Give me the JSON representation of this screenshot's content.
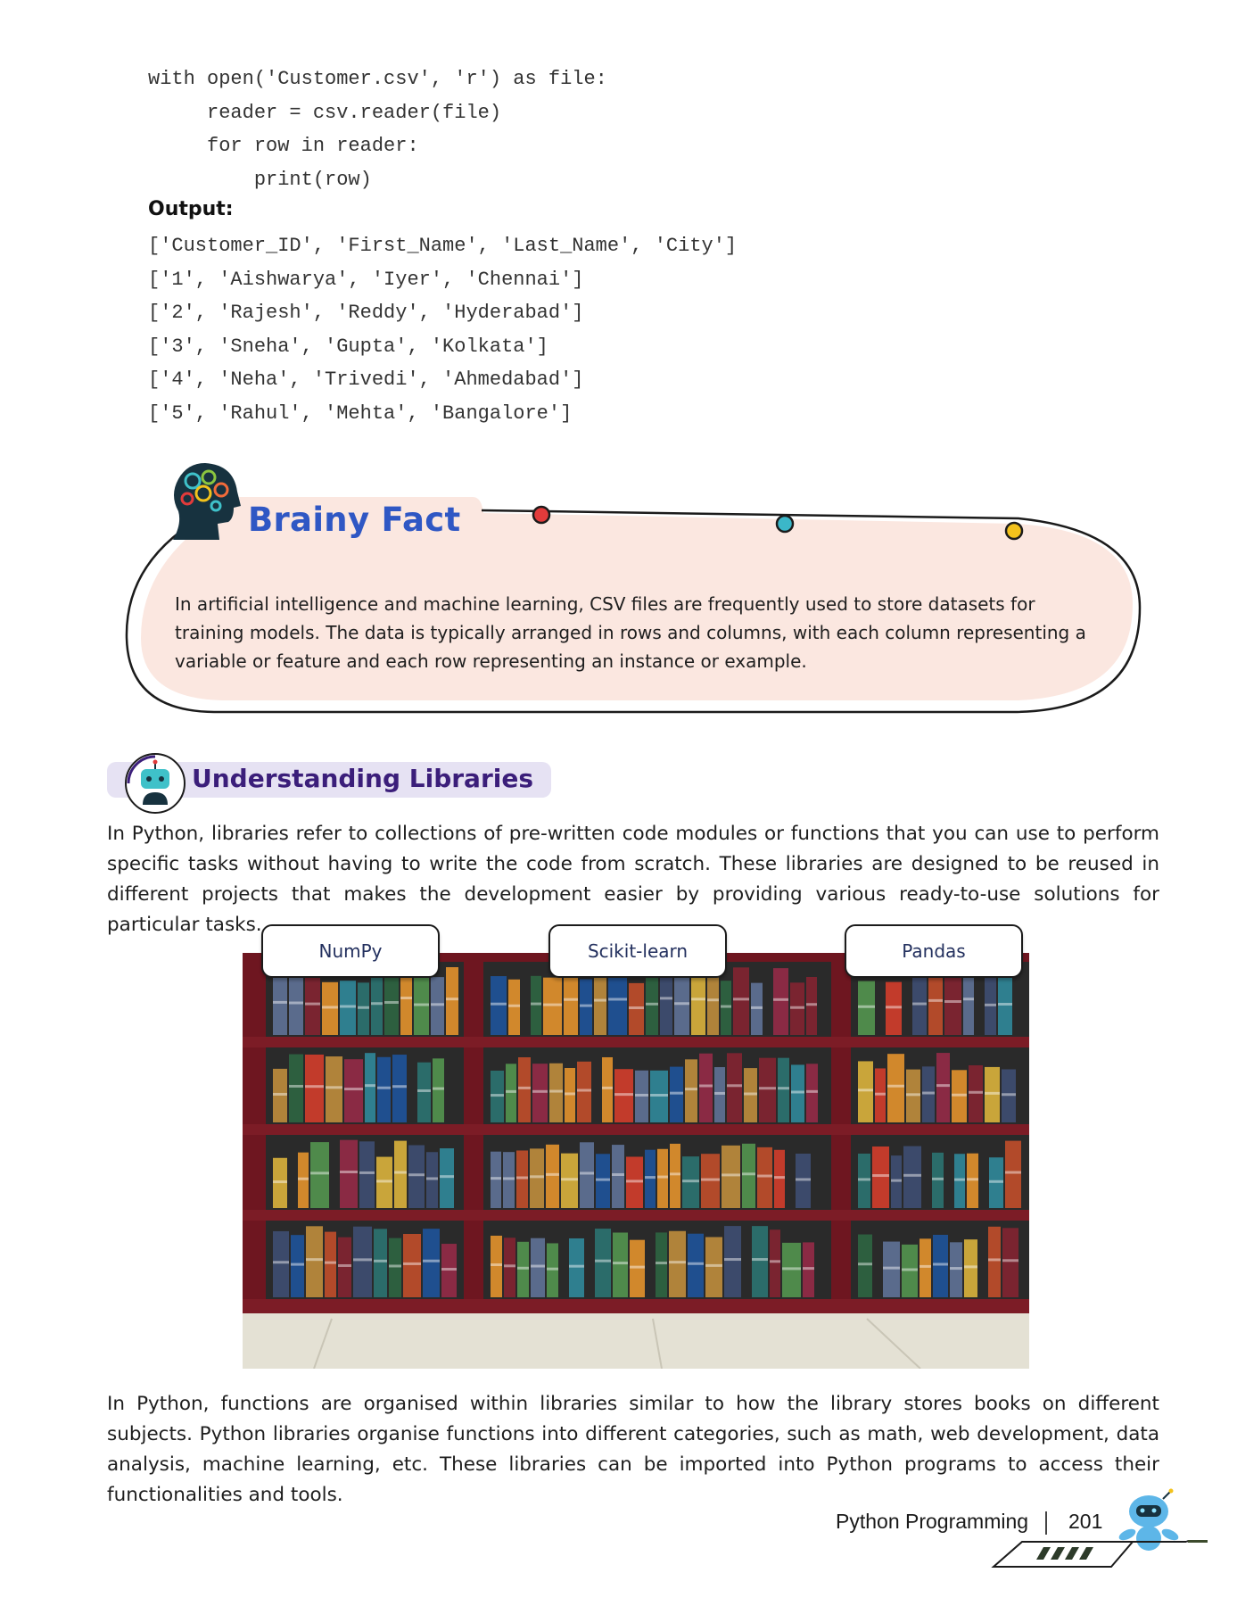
{
  "code": {
    "lines": [
      "with open('Customer.csv', 'r') as file:",
      "     reader = csv.reader(file)",
      "     for row in reader:",
      "         print(row)"
    ]
  },
  "output": {
    "label": "Output:",
    "lines": [
      "['Customer_ID', 'First_Name', 'Last_Name', 'City']",
      "['1', 'Aishwarya', 'Iyer', 'Chennai']",
      "['2', 'Rajesh', 'Reddy', 'Hyderabad']",
      "['3', 'Sneha', 'Gupta', 'Kolkata']",
      "['4', 'Neha', 'Trivedi', 'Ahmedabad']",
      "['5', 'Rahul', 'Mehta', 'Bangalore']"
    ]
  },
  "brainy_fact": {
    "title": "Brainy Fact",
    "text": "In artificial intelligence and machine learning, CSV files are frequently used to store datasets for training models. The data is typically arranged in rows and columns, with each column representing a variable or feature and each row representing an instance or example.",
    "colors": {
      "title": "#2f57c4",
      "fill": "#fbe7e0",
      "dot_red": "#e23b3b",
      "dot_teal": "#3bb7c9",
      "dot_yellow": "#f3c21c"
    }
  },
  "section": {
    "title": "Understanding Libraries",
    "intro": "In Python, libraries refer to collections of pre-written code modules or functions that you can use to perform specific tasks without having to write the code from scratch. These libraries are designed to be reused in different projects that makes the development easier by providing various ready-to-use solutions for particular tasks.",
    "bookshelf_labels": [
      "NumPy",
      "Scikit-learn",
      "Pandas"
    ],
    "outro": "In Python, functions are organised within libraries similar to how the library stores books on different subjects. Python libraries organise functions into different categories, such as math, web development, data analysis, machine learning, etc. These libraries can be imported into Python programs to access their functionalities and tools."
  },
  "footer": {
    "book_title": "Python Programming",
    "page_number": "201"
  }
}
